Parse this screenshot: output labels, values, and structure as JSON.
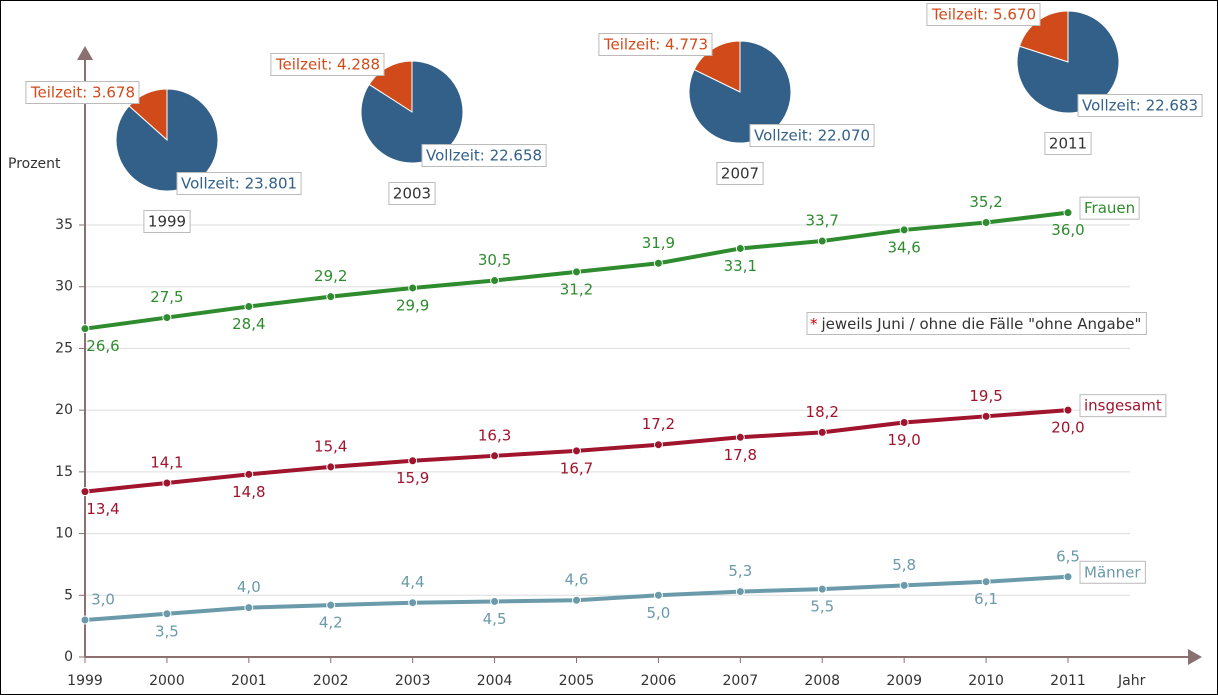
{
  "chart_data": [
    {
      "type": "line",
      "y_label": "Prozent",
      "x_label": "Jahr",
      "note": {
        "marker": "*",
        "text": "jeweils Juni / ohne die Fälle \"ohne Angabe\""
      },
      "x": [
        1999,
        2000,
        2001,
        2002,
        2003,
        2004,
        2005,
        2006,
        2007,
        2008,
        2009,
        2010,
        2011
      ],
      "xlim": [
        1999,
        2011
      ],
      "xticks": [
        1999,
        2000,
        2001,
        2002,
        2003,
        2004,
        2005,
        2006,
        2007,
        2008,
        2009,
        2010,
        2011
      ],
      "ylim": [
        0,
        35
      ],
      "yticks": [
        0,
        5,
        10,
        15,
        20,
        25,
        30,
        35
      ],
      "grid": true,
      "series": [
        {
          "name": "Frauen",
          "color": "#2e8b2e",
          "values": [
            26.6,
            27.5,
            28.4,
            29.2,
            29.9,
            30.5,
            31.2,
            31.9,
            33.1,
            33.7,
            34.6,
            35.2,
            36.0
          ],
          "value_labels": [
            "26,6",
            "27,5",
            "28,4",
            "29,2",
            "29,9",
            "30,5",
            "31,2",
            "31,9",
            "33,1",
            "33,7",
            "34,6",
            "35,2",
            "36,0"
          ]
        },
        {
          "name": "insgesamt",
          "color": "#a0142e",
          "values": [
            13.4,
            14.1,
            14.8,
            15.4,
            15.9,
            16.3,
            16.7,
            17.2,
            17.8,
            18.2,
            19.0,
            19.5,
            20.0
          ],
          "value_labels": [
            "13,4",
            "14,1",
            "14,8",
            "15,4",
            "15,9",
            "16,3",
            "16,7",
            "17,2",
            "17,8",
            "18,2",
            "19,0",
            "19,5",
            "20,0"
          ]
        },
        {
          "name": "Männer",
          "color": "#6b9aaa",
          "values": [
            3.0,
            3.5,
            4.0,
            4.2,
            4.4,
            4.5,
            4.6,
            5.0,
            5.3,
            5.5,
            5.8,
            6.1,
            6.5
          ],
          "value_labels": [
            "3,0",
            "3,5",
            "4,0",
            "4,2",
            "4,4",
            "4,5",
            "4,6",
            "5,0",
            "5,3",
            "5,5",
            "5,8",
            "6,1",
            "6,5"
          ]
        }
      ]
    },
    {
      "type": "pie",
      "title": "1999",
      "values": [
        3678,
        23801
      ],
      "value_labels": [
        "Teilzeit: 3.678",
        "Vollzeit: 23.801"
      ],
      "colors": [
        "#d04a1a",
        "#336088"
      ]
    },
    {
      "type": "pie",
      "title": "2003",
      "values": [
        4288,
        22658
      ],
      "value_labels": [
        "Teilzeit: 4.288",
        "Vollzeit: 22.658"
      ],
      "colors": [
        "#d04a1a",
        "#336088"
      ]
    },
    {
      "type": "pie",
      "title": "2007",
      "values": [
        4773,
        22070
      ],
      "value_labels": [
        "Teilzeit: 4.773",
        "Vollzeit: 22.070"
      ],
      "colors": [
        "#d04a1a",
        "#336088"
      ]
    },
    {
      "type": "pie",
      "title": "2011",
      "values": [
        5670,
        22683
      ],
      "value_labels": [
        "Teilzeit: 5.670",
        "Vollzeit: 22.683"
      ],
      "colors": [
        "#d04a1a",
        "#336088"
      ]
    }
  ]
}
